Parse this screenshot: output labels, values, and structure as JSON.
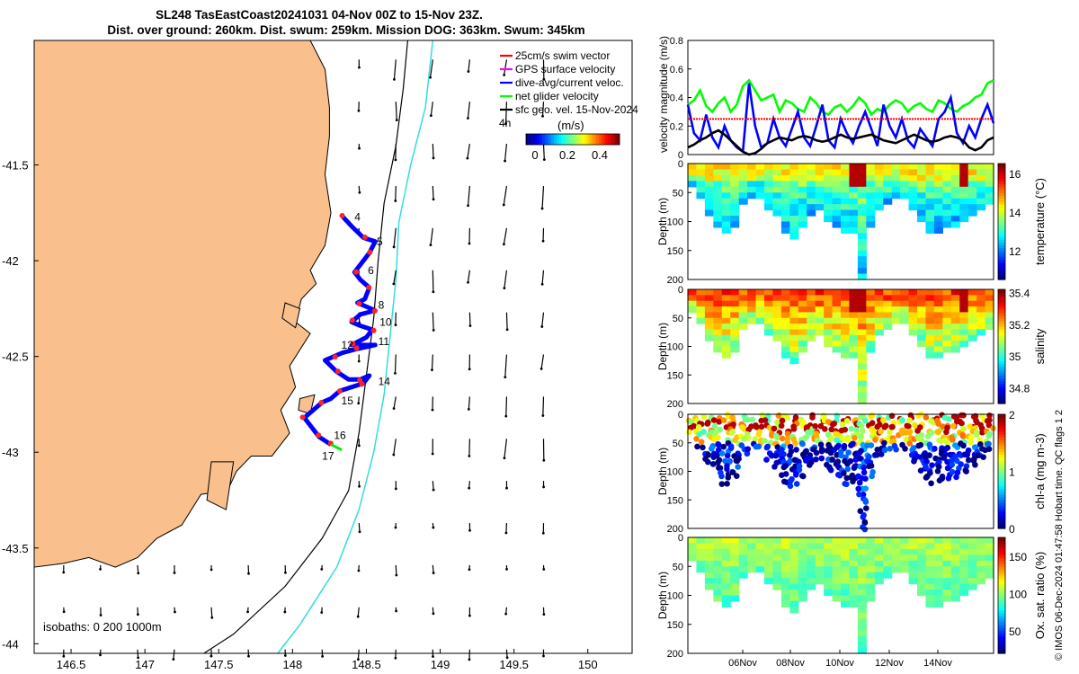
{
  "header": {
    "line1": "SL248 TasEastCoast20241031 04-Nov 00Z to 15-Nov 23Z.",
    "line2": "Dist. over ground: 260km. Dist. swum: 259km. Mission DOG: 363km. Swum: 345km"
  },
  "footer": "© IMOS 06-Dec-2024 01:47:58 Hobart time. QC flags 1  2",
  "chart_data": [
    {
      "type": "map",
      "xlim": [
        146.25,
        150.3
      ],
      "ylim": [
        -44.05,
        -40.85
      ],
      "xticks": [
        146.5,
        147,
        147.5,
        148,
        148.5,
        149,
        149.5,
        150
      ],
      "xtick_labels": [
        "146.5",
        "147",
        "147.5",
        "148",
        "148.5",
        "149",
        "149.5",
        "150"
      ],
      "yticks": [
        -41.5,
        -42,
        -42.5,
        -43,
        -43.5,
        -44
      ],
      "ytick_labels": [
        "-41.5",
        "-42",
        "-42.5",
        "-43",
        "-43.5",
        "-44"
      ],
      "legend": [
        {
          "label": "25cm/s swim vector",
          "color": "#ff0000"
        },
        {
          "label": "GPS surface velocity",
          "color": "#ff00ff"
        },
        {
          "label": "dive-avg/current veloc.",
          "color": "#0000ff"
        },
        {
          "label": "net glider velocity",
          "color": "#00ff00"
        },
        {
          "label": "sfc geo. vel. 15-Nov-2024",
          "color": "#000000"
        }
      ],
      "colorbar": {
        "label": "(m/s)",
        "ticks": [
          "0",
          "0.2",
          "0.4"
        ],
        "note": "4h"
      },
      "isobath_label": "isobaths: 0   200  1000m",
      "day_labels": [
        {
          "day": "4",
          "lon": 148.42,
          "lat": -41.79
        },
        {
          "day": "5",
          "lon": 148.57,
          "lat": -41.92
        },
        {
          "day": "6",
          "lon": 148.51,
          "lat": -42.07
        },
        {
          "day": "8",
          "lon": 148.58,
          "lat": -42.25
        },
        {
          "day": "10",
          "lon": 148.59,
          "lat": -42.34
        },
        {
          "day": "11",
          "lon": 148.58,
          "lat": -42.44
        },
        {
          "day": "12",
          "lon": 148.33,
          "lat": -42.46
        },
        {
          "day": "14",
          "lon": 148.58,
          "lat": -42.65
        },
        {
          "day": "15",
          "lon": 148.33,
          "lat": -42.75
        },
        {
          "day": "16",
          "lon": 148.28,
          "lat": -42.93
        },
        {
          "day": "17",
          "lon": 148.2,
          "lat": -43.04
        }
      ],
      "track": [
        [
          148.34,
          -41.77
        ],
        [
          148.4,
          -41.82
        ],
        [
          148.48,
          -41.88
        ],
        [
          148.56,
          -41.9
        ],
        [
          148.52,
          -41.96
        ],
        [
          148.46,
          -42.02
        ],
        [
          148.42,
          -42.06
        ],
        [
          148.46,
          -42.1
        ],
        [
          148.52,
          -42.14
        ],
        [
          148.49,
          -42.2
        ],
        [
          148.44,
          -42.22
        ],
        [
          148.5,
          -42.24
        ],
        [
          148.56,
          -42.26
        ],
        [
          148.46,
          -42.28
        ],
        [
          148.4,
          -42.32
        ],
        [
          148.46,
          -42.34
        ],
        [
          148.54,
          -42.36
        ],
        [
          148.5,
          -42.4
        ],
        [
          148.4,
          -42.44
        ],
        [
          148.56,
          -42.44
        ],
        [
          148.44,
          -42.46
        ],
        [
          148.34,
          -42.48
        ],
        [
          148.28,
          -42.5
        ],
        [
          148.22,
          -42.52
        ],
        [
          148.3,
          -42.58
        ],
        [
          148.38,
          -42.62
        ],
        [
          148.46,
          -42.62
        ],
        [
          148.52,
          -42.6
        ],
        [
          148.48,
          -42.64
        ],
        [
          148.4,
          -42.66
        ],
        [
          148.32,
          -42.68
        ],
        [
          148.26,
          -42.72
        ],
        [
          148.2,
          -42.74
        ],
        [
          148.14,
          -42.78
        ],
        [
          148.08,
          -42.82
        ],
        [
          148.12,
          -42.86
        ],
        [
          148.18,
          -42.92
        ],
        [
          148.24,
          -42.95
        ],
        [
          148.26,
          -42.96
        ]
      ]
    },
    {
      "type": "line",
      "ylabel": "velocity magnitude (m/s)",
      "ylim": [
        0,
        0.8
      ],
      "yticks": [
        "0",
        "0.2",
        "0.4",
        "0.6",
        "0.8"
      ],
      "series": [
        {
          "name": "net glider velocity",
          "color": "#00ff00",
          "values": [
            0.35,
            0.38,
            0.45,
            0.34,
            0.3,
            0.36,
            0.4,
            0.3,
            0.35,
            0.48,
            0.52,
            0.45,
            0.38,
            0.4,
            0.42,
            0.3,
            0.38,
            0.36,
            0.32,
            0.3,
            0.4,
            0.36,
            0.3,
            0.28,
            0.33,
            0.35,
            0.3,
            0.34,
            0.4,
            0.36,
            0.28,
            0.32,
            0.3,
            0.35,
            0.38,
            0.36,
            0.3,
            0.34,
            0.36,
            0.32,
            0.3,
            0.38,
            0.36,
            0.32,
            0.3,
            0.34,
            0.36,
            0.4,
            0.42,
            0.5,
            0.52
          ]
        },
        {
          "name": "dive-avg/current veloc.",
          "color": "#0000ff",
          "values": [
            0.35,
            0.15,
            0.1,
            0.28,
            0.12,
            0.05,
            0.2,
            0.1,
            0.05,
            0.02,
            0.5,
            0.2,
            0.05,
            0.08,
            0.25,
            0.12,
            0.06,
            0.18,
            0.3,
            0.12,
            0.06,
            0.2,
            0.35,
            0.1,
            0.05,
            0.25,
            0.15,
            0.08,
            0.2,
            0.3,
            0.18,
            0.06,
            0.35,
            0.2,
            0.12,
            0.25,
            0.1,
            0.05,
            0.18,
            0.12,
            0.06,
            0.25,
            0.3,
            0.4,
            0.15,
            0.08,
            0.2,
            0.12,
            0.25,
            0.35,
            0.22
          ]
        },
        {
          "name": "swim",
          "color": "#ff0000",
          "values": [
            0.25,
            0.25
          ]
        },
        {
          "name": "sfc geo. vel.",
          "color": "#000000",
          "values": [
            0.05,
            0.07,
            0.1,
            0.12,
            0.15,
            0.17,
            0.14,
            0.1,
            0.06,
            0.02,
            0.0,
            0.01,
            0.04,
            0.08,
            0.1,
            0.12,
            0.11,
            0.1,
            0.12,
            0.13,
            0.12,
            0.1,
            0.09,
            0.1,
            0.12,
            0.14,
            0.12,
            0.11,
            0.12,
            0.13,
            0.14,
            0.12,
            0.1,
            0.09,
            0.08,
            0.1,
            0.12,
            0.14,
            0.12,
            0.1,
            0.09,
            0.1,
            0.12,
            0.13,
            0.12,
            0.1,
            0.05,
            0.03,
            0.05,
            0.1,
            0.12
          ]
        }
      ]
    },
    {
      "type": "heatmap",
      "variable": "temperature",
      "ylabel": "Depth (m)",
      "cbar_label": "temperature (°C)",
      "clim": [
        10.5,
        16.5
      ],
      "cbar_ticks": [
        "12",
        "14",
        "16"
      ],
      "yticks": [
        "0",
        "50",
        "100",
        "150",
        "200"
      ],
      "profile": [
        40,
        60,
        90,
        110,
        115,
        108,
        70,
        58,
        55,
        72,
        90,
        112,
        128,
        110,
        86,
        80,
        95,
        108,
        112,
        112,
        200,
        110,
        80,
        68,
        60,
        60,
        80,
        92,
        118,
        120,
        110,
        103,
        95,
        84,
        75,
        70
      ]
    },
    {
      "type": "heatmap",
      "variable": "salinity",
      "ylabel": "Depth (m)",
      "cbar_label": "salinity",
      "clim": [
        34.7,
        35.42
      ],
      "cbar_ticks": [
        "34.8",
        "35",
        "35.2",
        "35.4"
      ],
      "yticks": [
        "0",
        "50",
        "100",
        "150",
        "200"
      ],
      "profile": [
        40,
        60,
        90,
        110,
        115,
        108,
        70,
        58,
        55,
        72,
        90,
        112,
        128,
        110,
        86,
        80,
        95,
        108,
        112,
        112,
        200,
        110,
        80,
        68,
        60,
        60,
        80,
        92,
        118,
        120,
        110,
        103,
        95,
        84,
        75,
        70
      ]
    },
    {
      "type": "scatter",
      "variable": "chl-a",
      "ylabel": "Depth (m)",
      "cbar_label": "chl-a (mg m-3)",
      "clim": [
        0,
        2
      ],
      "cbar_ticks": [
        "0",
        "1",
        "2"
      ],
      "yticks": [
        "0",
        "50",
        "100",
        "150",
        "200"
      ],
      "profile": [
        40,
        60,
        90,
        110,
        115,
        108,
        70,
        58,
        55,
        72,
        90,
        112,
        128,
        110,
        86,
        80,
        95,
        108,
        112,
        112,
        200,
        110,
        80,
        68,
        60,
        60,
        80,
        92,
        118,
        120,
        110,
        103,
        95,
        84,
        75,
        70
      ]
    },
    {
      "type": "heatmap",
      "variable": "oxygen saturation",
      "ylabel": "Depth (m)",
      "cbar_label": "Ox. sat. ratio (%)",
      "clim": [
        20,
        175
      ],
      "cbar_ticks": [
        "50",
        "100",
        "150"
      ],
      "yticks": [
        "0",
        "50",
        "100",
        "150",
        "200"
      ],
      "xtick_labels": [
        "06Nov",
        "08Nov",
        "10Nov",
        "12Nov",
        "14Nov"
      ],
      "profile": [
        40,
        60,
        90,
        110,
        115,
        108,
        70,
        58,
        55,
        72,
        90,
        112,
        128,
        110,
        86,
        80,
        95,
        108,
        112,
        112,
        200,
        110,
        80,
        68,
        60,
        60,
        80,
        92,
        118,
        120,
        110,
        103,
        95,
        84,
        75,
        70
      ]
    }
  ]
}
